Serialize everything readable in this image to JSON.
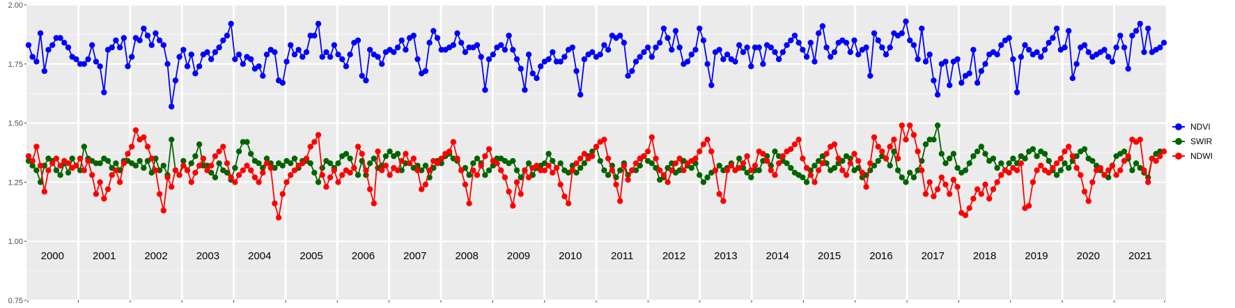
{
  "chart_data": {
    "type": "line",
    "title": "",
    "xlabel": "",
    "ylabel": "",
    "ylim": [
      0.75,
      2.0
    ],
    "y_ticks": [
      "0.75",
      "1.00",
      "1.25",
      "1.50",
      "1.75",
      "2.00"
    ],
    "y_tick_values": [
      0.75,
      1.0,
      1.25,
      1.5,
      1.75,
      2.0
    ],
    "years": [
      "2000",
      "2001",
      "2002",
      "2003",
      "2004",
      "2005",
      "2006",
      "2007",
      "2008",
      "2009",
      "2010",
      "2011",
      "2012",
      "2013",
      "2014",
      "2015",
      "2016",
      "2017",
      "2018",
      "2019",
      "2020",
      "2021"
    ],
    "grid": true,
    "legend_position": "right",
    "series": [
      {
        "name": "NDVI",
        "color": "#0000ff",
        "values": [
          1.83,
          1.78,
          1.76,
          1.88,
          1.72,
          1.81,
          1.83,
          1.86,
          1.86,
          1.84,
          1.82,
          1.78,
          1.77,
          1.75,
          1.75,
          1.77,
          1.83,
          1.76,
          1.74,
          1.63,
          1.81,
          1.82,
          1.85,
          1.82,
          1.86,
          1.74,
          1.78,
          1.86,
          1.85,
          1.9,
          1.87,
          1.83,
          1.88,
          1.85,
          1.83,
          1.75,
          1.57,
          1.68,
          1.78,
          1.81,
          1.74,
          1.79,
          1.71,
          1.74,
          1.79,
          1.8,
          1.77,
          1.8,
          1.82,
          1.85,
          1.87,
          1.92,
          1.77,
          1.79,
          1.75,
          1.78,
          1.77,
          1.73,
          1.74,
          1.7,
          1.79,
          1.81,
          1.8,
          1.68,
          1.67,
          1.76,
          1.83,
          1.79,
          1.81,
          1.78,
          1.8,
          1.87,
          1.87,
          1.92,
          1.78,
          1.8,
          1.78,
          1.83,
          1.79,
          1.77,
          1.74,
          1.79,
          1.84,
          1.85,
          1.7,
          1.68,
          1.81,
          1.79,
          1.78,
          1.75,
          1.8,
          1.81,
          1.8,
          1.82,
          1.85,
          1.81,
          1.86,
          1.87,
          1.77,
          1.71,
          1.72,
          1.84,
          1.89,
          1.86,
          1.81,
          1.81,
          1.82,
          1.83,
          1.88,
          1.84,
          1.8,
          1.82,
          1.82,
          1.83,
          1.78,
          1.64,
          1.77,
          1.79,
          1.82,
          1.83,
          1.81,
          1.87,
          1.81,
          1.77,
          1.73,
          1.64,
          1.79,
          1.71,
          1.69,
          1.74,
          1.76,
          1.77,
          1.8,
          1.76,
          1.76,
          1.78,
          1.81,
          1.82,
          1.72,
          1.62,
          1.77,
          1.79,
          1.8,
          1.78,
          1.79,
          1.83,
          1.81,
          1.87,
          1.86,
          1.87,
          1.84,
          1.7,
          1.72,
          1.76,
          1.78,
          1.8,
          1.82,
          1.78,
          1.82,
          1.84,
          1.9,
          1.86,
          1.81,
          1.89,
          1.82,
          1.75,
          1.76,
          1.79,
          1.81,
          1.9,
          1.85,
          1.75,
          1.66,
          1.8,
          1.81,
          1.77,
          1.79,
          1.77,
          1.76,
          1.83,
          1.8,
          1.82,
          1.74,
          1.82,
          1.82,
          1.75,
          1.83,
          1.82,
          1.8,
          1.77,
          1.8,
          1.83,
          1.85,
          1.87,
          1.84,
          1.81,
          1.78,
          1.84,
          1.76,
          1.88,
          1.91,
          1.82,
          1.78,
          1.8,
          1.84,
          1.85,
          1.84,
          1.8,
          1.85,
          1.79,
          1.81,
          1.82,
          1.7,
          1.88,
          1.85,
          1.82,
          1.79,
          1.82,
          1.88,
          1.87,
          1.88,
          1.93,
          1.85,
          1.83,
          1.77,
          1.9,
          1.76,
          1.79,
          1.68,
          1.62,
          1.75,
          1.76,
          1.66,
          1.76,
          1.77,
          1.67,
          1.7,
          1.71,
          1.81,
          1.67,
          1.72,
          1.75,
          1.79,
          1.8,
          1.79,
          1.83,
          1.85,
          1.86,
          1.77,
          1.63,
          1.78,
          1.83,
          1.81,
          1.79,
          1.8,
          1.78,
          1.81,
          1.84,
          1.86,
          1.9,
          1.81,
          1.82,
          1.89,
          1.69,
          1.75,
          1.82,
          1.83,
          1.8,
          1.78,
          1.79,
          1.8,
          1.81,
          1.78,
          1.76,
          1.82,
          1.87,
          1.82,
          1.73,
          1.87,
          1.89,
          1.92,
          1.8,
          1.9,
          1.8,
          1.81,
          1.82,
          1.84
        ]
      },
      {
        "name": "SWIR",
        "color": "#006400",
        "values": [
          1.34,
          1.32,
          1.3,
          1.25,
          1.32,
          1.35,
          1.34,
          1.3,
          1.28,
          1.33,
          1.29,
          1.35,
          1.32,
          1.3,
          1.4,
          1.35,
          1.34,
          1.33,
          1.33,
          1.35,
          1.34,
          1.31,
          1.33,
          1.3,
          1.34,
          1.34,
          1.33,
          1.32,
          1.34,
          1.31,
          1.34,
          1.29,
          1.35,
          1.3,
          1.32,
          1.28,
          1.43,
          1.3,
          1.28,
          1.34,
          1.3,
          1.33,
          1.36,
          1.41,
          1.32,
          1.32,
          1.29,
          1.27,
          1.33,
          1.3,
          1.29,
          1.26,
          1.31,
          1.38,
          1.42,
          1.42,
          1.37,
          1.34,
          1.33,
          1.31,
          1.35,
          1.33,
          1.31,
          1.33,
          1.32,
          1.34,
          1.33,
          1.35,
          1.31,
          1.34,
          1.34,
          1.33,
          1.29,
          1.25,
          1.31,
          1.34,
          1.33,
          1.31,
          1.33,
          1.36,
          1.37,
          1.35,
          1.31,
          1.28,
          1.34,
          1.28,
          1.33,
          1.35,
          1.31,
          1.32,
          1.36,
          1.38,
          1.36,
          1.37,
          1.3,
          1.33,
          1.33,
          1.31,
          1.32,
          1.3,
          1.32,
          1.27,
          1.31,
          1.34,
          1.33,
          1.36,
          1.37,
          1.35,
          1.34,
          1.3,
          1.31,
          1.28,
          1.33,
          1.35,
          1.33,
          1.28,
          1.3,
          1.32,
          1.35,
          1.35,
          1.34,
          1.33,
          1.34,
          1.3,
          1.27,
          1.3,
          1.33,
          1.28,
          1.31,
          1.32,
          1.33,
          1.37,
          1.34,
          1.31,
          1.33,
          1.3,
          1.29,
          1.32,
          1.29,
          1.31,
          1.33,
          1.36,
          1.38,
          1.4,
          1.34,
          1.3,
          1.28,
          1.32,
          1.27,
          1.3,
          1.33,
          1.28,
          1.3,
          1.3,
          1.32,
          1.36,
          1.34,
          1.33,
          1.31,
          1.26,
          1.27,
          1.31,
          1.33,
          1.29,
          1.3,
          1.34,
          1.32,
          1.31,
          1.33,
          1.28,
          1.25,
          1.27,
          1.29,
          1.3,
          1.32,
          1.3,
          1.31,
          1.33,
          1.3,
          1.35,
          1.31,
          1.29,
          1.27,
          1.3,
          1.3,
          1.34,
          1.36,
          1.32,
          1.38,
          1.36,
          1.34,
          1.33,
          1.31,
          1.29,
          1.28,
          1.27,
          1.25,
          1.3,
          1.32,
          1.34,
          1.36,
          1.33,
          1.3,
          1.31,
          1.33,
          1.34,
          1.36,
          1.35,
          1.3,
          1.31,
          1.27,
          1.28,
          1.3,
          1.32,
          1.34,
          1.36,
          1.35,
          1.32,
          1.38,
          1.3,
          1.27,
          1.25,
          1.29,
          1.27,
          1.3,
          1.34,
          1.41,
          1.43,
          1.43,
          1.49,
          1.37,
          1.33,
          1.35,
          1.37,
          1.31,
          1.29,
          1.3,
          1.33,
          1.36,
          1.38,
          1.4,
          1.37,
          1.34,
          1.35,
          1.31,
          1.33,
          1.3,
          1.33,
          1.35,
          1.33,
          1.36,
          1.35,
          1.38,
          1.39,
          1.36,
          1.38,
          1.37,
          1.34,
          1.3,
          1.28,
          1.3,
          1.33,
          1.31,
          1.34,
          1.36,
          1.38,
          1.39,
          1.35,
          1.34,
          1.32,
          1.3,
          1.28,
          1.27,
          1.32,
          1.36,
          1.37,
          1.38,
          1.35,
          1.3,
          1.33,
          1.31,
          1.29,
          1.27,
          1.35,
          1.37,
          1.38
        ]
      },
      {
        "name": "NDWI",
        "color": "#ff0000",
        "values": [
          1.36,
          1.34,
          1.4,
          1.32,
          1.21,
          1.3,
          1.33,
          1.35,
          1.32,
          1.34,
          1.33,
          1.31,
          1.32,
          1.35,
          1.3,
          1.34,
          1.28,
          1.2,
          1.25,
          1.18,
          1.22,
          1.28,
          1.3,
          1.25,
          1.33,
          1.37,
          1.4,
          1.47,
          1.43,
          1.44,
          1.4,
          1.35,
          1.3,
          1.2,
          1.13,
          1.27,
          1.23,
          1.3,
          1.28,
          1.32,
          1.3,
          1.25,
          1.29,
          1.32,
          1.35,
          1.3,
          1.32,
          1.36,
          1.38,
          1.4,
          1.33,
          1.27,
          1.25,
          1.28,
          1.3,
          1.32,
          1.3,
          1.27,
          1.25,
          1.29,
          1.33,
          1.31,
          1.16,
          1.1,
          1.2,
          1.25,
          1.28,
          1.3,
          1.32,
          1.33,
          1.35,
          1.4,
          1.42,
          1.45,
          1.28,
          1.23,
          1.27,
          1.3,
          1.25,
          1.28,
          1.3,
          1.29,
          1.31,
          1.4,
          1.37,
          1.3,
          1.22,
          1.16,
          1.38,
          1.3,
          1.32,
          1.28,
          1.31,
          1.3,
          1.34,
          1.37,
          1.33,
          1.35,
          1.3,
          1.22,
          1.24,
          1.3,
          1.34,
          1.33,
          1.35,
          1.37,
          1.38,
          1.42,
          1.35,
          1.3,
          1.24,
          1.16,
          1.3,
          1.28,
          1.32,
          1.36,
          1.39,
          1.34,
          1.33,
          1.3,
          1.27,
          1.21,
          1.15,
          1.25,
          1.2,
          1.3,
          1.27,
          1.31,
          1.32,
          1.3,
          1.3,
          1.32,
          1.29,
          1.31,
          1.24,
          1.19,
          1.16,
          1.3,
          1.33,
          1.35,
          1.37,
          1.35,
          1.36,
          1.4,
          1.42,
          1.43,
          1.35,
          1.3,
          1.24,
          1.17,
          1.32,
          1.26,
          1.3,
          1.33,
          1.35,
          1.36,
          1.38,
          1.44,
          1.35,
          1.3,
          1.28,
          1.25,
          1.3,
          1.33,
          1.35,
          1.3,
          1.33,
          1.34,
          1.35,
          1.38,
          1.41,
          1.43,
          1.38,
          1.3,
          1.2,
          1.17,
          1.3,
          1.32,
          1.3,
          1.31,
          1.33,
          1.36,
          1.3,
          1.32,
          1.38,
          1.37,
          1.34,
          1.3,
          1.28,
          1.33,
          1.36,
          1.38,
          1.39,
          1.41,
          1.43,
          1.35,
          1.31,
          1.28,
          1.25,
          1.3,
          1.33,
          1.37,
          1.4,
          1.41,
          1.35,
          1.3,
          1.28,
          1.33,
          1.37,
          1.34,
          1.29,
          1.23,
          1.33,
          1.44,
          1.4,
          1.38,
          1.35,
          1.4,
          1.43,
          1.35,
          1.49,
          1.43,
          1.49,
          1.45,
          1.38,
          1.3,
          1.2,
          1.25,
          1.19,
          1.22,
          1.27,
          1.24,
          1.2,
          1.26,
          1.23,
          1.12,
          1.11,
          1.14,
          1.18,
          1.22,
          1.2,
          1.24,
          1.18,
          1.22,
          1.25,
          1.28,
          1.3,
          1.29,
          1.31,
          1.3,
          1.33,
          1.14,
          1.15,
          1.25,
          1.3,
          1.32,
          1.3,
          1.29,
          1.31,
          1.33,
          1.35,
          1.38,
          1.4,
          1.36,
          1.31,
          1.28,
          1.21,
          1.17,
          1.25,
          1.3,
          1.31,
          1.28,
          1.3,
          1.32,
          1.28,
          1.3,
          1.34,
          1.36,
          1.43,
          1.42,
          1.43,
          1.3,
          1.25,
          1.35,
          1.34,
          1.36,
          1.38
        ]
      }
    ]
  }
}
